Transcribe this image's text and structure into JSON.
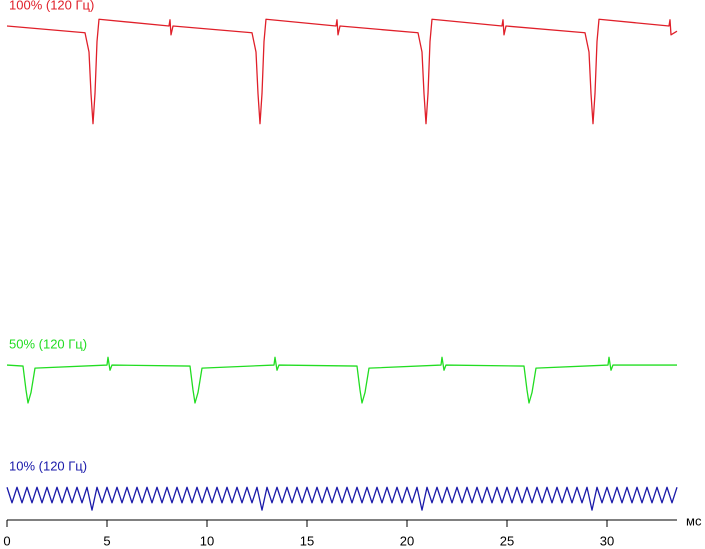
{
  "chart_data": {
    "type": "line",
    "x_label": "мс",
    "xlim": [
      0,
      33.5
    ],
    "xticks": [
      0,
      5,
      10,
      15,
      20,
      25,
      30
    ],
    "ylim": [
      0,
      100
    ],
    "series": [
      {
        "name": "100% (120 Гц)",
        "color": "#e0202a",
        "x": [
          0,
          3.9,
          4.1,
          4.2,
          4.3,
          4.4,
          4.5,
          4.6,
          8.1,
          8.15,
          8.2,
          8.3,
          12.25,
          12.45,
          12.55,
          12.65,
          12.75,
          12.85,
          12.95,
          16.45,
          16.5,
          16.55,
          16.65,
          20.55,
          20.75,
          20.85,
          20.95,
          21.05,
          21.15,
          21.25,
          24.75,
          24.8,
          24.85,
          24.95,
          28.9,
          29.1,
          29.2,
          29.3,
          29.4,
          29.5,
          29.6,
          33.1,
          33.15,
          33.2,
          33.5
        ],
        "values": [
          95,
          93.7,
          90,
          82,
          76.2,
          82,
          92,
          96.3,
          95,
          96.2,
          93.3,
          95,
          93.7,
          90,
          82,
          76.2,
          82,
          92,
          96.3,
          95,
          96.2,
          93.3,
          95,
          93.7,
          90,
          82,
          76.2,
          82,
          92,
          96.3,
          95,
          96.2,
          93.3,
          95,
          93.7,
          90,
          82,
          76.2,
          82,
          92,
          96.3,
          95,
          96.2,
          93.3,
          94
        ]
      },
      {
        "name": "50% (120 Гц)",
        "color": "#22dd22",
        "x": [
          0,
          0.8,
          0.95,
          1.05,
          1.2,
          1.4,
          5,
          5.05,
          5.15,
          5.25,
          9.15,
          9.3,
          9.4,
          9.55,
          9.75,
          13.35,
          13.4,
          13.5,
          13.6,
          17.5,
          17.65,
          17.75,
          17.9,
          18.1,
          21.7,
          21.75,
          21.85,
          21.95,
          25.85,
          26,
          26.1,
          26.25,
          26.45,
          30.05,
          30.1,
          30.2,
          30.3,
          33.5
        ],
        "values": [
          29.8,
          29.6,
          25,
          22.5,
          24.5,
          29.2,
          29.8,
          31.3,
          28.8,
          29.8,
          29.6,
          25,
          22.5,
          24.5,
          29.2,
          29.8,
          31.3,
          28.8,
          29.8,
          29.6,
          25,
          22.5,
          24.5,
          29.2,
          29.8,
          31.3,
          28.8,
          29.8,
          29.6,
          25,
          22.5,
          24.5,
          29.2,
          29.8,
          31.3,
          28.8,
          29.8,
          29.8
        ]
      },
      {
        "name": "10% (120 Гц)",
        "color": "#1a1aaa",
        "x": [
          0,
          0.25,
          0.5,
          0.75,
          1,
          1.25,
          1.5,
          1.75,
          2,
          2.25,
          2.5,
          2.75,
          3,
          3.25,
          3.5,
          3.75,
          4,
          4.25,
          4.5,
          4.75,
          5,
          5.25,
          5.5,
          5.75,
          6,
          6.25,
          6.5,
          6.75,
          7,
          7.25,
          7.5,
          7.75,
          8,
          8.25,
          8.5,
          8.75,
          9,
          9.25,
          9.5,
          9.75,
          10,
          10.25,
          10.5,
          10.75,
          11,
          11.25,
          11.5,
          11.75,
          12,
          12.25,
          12.5,
          12.75,
          13,
          13.25,
          13.5,
          13.75,
          14,
          14.25,
          14.5,
          14.75,
          15,
          15.25,
          15.5,
          15.75,
          16,
          16.25,
          16.5,
          16.75,
          17,
          17.25,
          17.5,
          17.75,
          18,
          18.25,
          18.5,
          18.75,
          19,
          19.25,
          19.5,
          19.75,
          20,
          20.25,
          20.5,
          20.75,
          21,
          21.25,
          21.5,
          21.75,
          22,
          22.25,
          22.5,
          22.75,
          23,
          23.25,
          23.5,
          23.75,
          24,
          24.25,
          24.5,
          24.75,
          25,
          25.25,
          25.5,
          25.75,
          26,
          26.25,
          26.5,
          26.75,
          27,
          27.25,
          27.5,
          27.75,
          28,
          28.25,
          28.5,
          28.75,
          29,
          29.25,
          29.5,
          29.75,
          30,
          30.25,
          30.5,
          30.75,
          31,
          31.25,
          31.5,
          31.75,
          32,
          32.25,
          32.5,
          32.75,
          33,
          33.25,
          33.5
        ],
        "values": [
          6.3,
          3.3,
          6.3,
          3.3,
          6.3,
          3.3,
          6.3,
          3.3,
          6.3,
          3.3,
          6.3,
          3.3,
          6.3,
          3.3,
          6.3,
          3.3,
          6.3,
          1.9,
          6.3,
          3.3,
          6.3,
          3.3,
          6.3,
          3.3,
          6.3,
          3.3,
          6.3,
          3.3,
          6.3,
          3.3,
          6.3,
          3.3,
          6.3,
          3.3,
          6.3,
          3.3,
          6.3,
          3.3,
          6.3,
          3.3,
          6.3,
          3.3,
          6.3,
          3.3,
          6.3,
          3.3,
          6.3,
          3.3,
          6.3,
          3.3,
          6.3,
          1.9,
          6.3,
          3.3,
          6.3,
          3.3,
          6.3,
          3.3,
          6.3,
          3.3,
          6.3,
          3.3,
          6.3,
          3.3,
          6.3,
          3.3,
          6.3,
          3.3,
          6.3,
          3.3,
          6.3,
          3.3,
          6.3,
          3.3,
          6.3,
          3.3,
          6.3,
          3.3,
          6.3,
          3.3,
          6.3,
          3.3,
          6.3,
          1.9,
          6.3,
          3.3,
          6.3,
          3.3,
          6.3,
          3.3,
          6.3,
          3.3,
          6.3,
          3.3,
          6.3,
          3.3,
          6.3,
          3.3,
          6.3,
          3.3,
          6.3,
          3.3,
          6.3,
          3.3,
          6.3,
          3.3,
          6.3,
          3.3,
          6.3,
          3.3,
          6.3,
          3.3,
          6.3,
          3.3,
          6.3,
          3.3,
          6.3,
          1.9,
          6.3,
          3.3,
          6.3,
          3.3,
          6.3,
          3.3,
          6.3,
          3.3,
          6.3,
          3.3,
          6.3,
          3.3,
          6.3,
          3.3,
          6.3,
          3.3,
          6.3
        ]
      }
    ]
  }
}
